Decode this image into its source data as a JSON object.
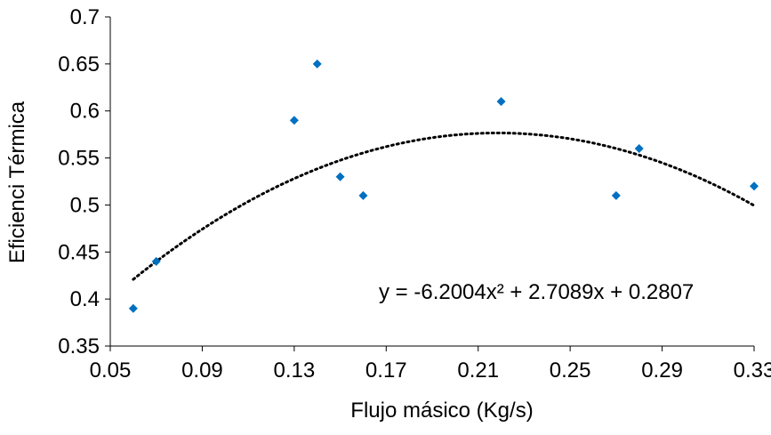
{
  "chart_data": {
    "type": "scatter",
    "xlabel": "Flujo másico (Kg/s)",
    "ylabel": "Eficienci Térmica",
    "xlim": [
      0.05,
      0.33
    ],
    "ylim": [
      0.35,
      0.7
    ],
    "x_ticks": [
      "0.05",
      "0.09",
      "0.13",
      "0.17",
      "0.21",
      "0.25",
      "0.29",
      "0.33"
    ],
    "y_ticks": [
      "0.35",
      "0.4",
      "0.45",
      "0.5",
      "0.55",
      "0.6",
      "0.65",
      "0.7"
    ],
    "grid": false,
    "legend": "none",
    "series": [
      {
        "x": [
          0.06,
          0.07,
          0.13,
          0.14,
          0.15,
          0.16,
          0.22,
          0.27,
          0.28,
          0.33
        ],
        "y": [
          0.39,
          0.44,
          0.59,
          0.65,
          0.53,
          0.51,
          0.61,
          0.51,
          0.56,
          0.52
        ],
        "marker": "diamond",
        "color": "#0070C0"
      }
    ],
    "trendline": {
      "type": "polynomial",
      "order": 2,
      "coefficients": [
        -6.2004,
        2.7089,
        0.2807
      ],
      "x_range": [
        0.06,
        0.33
      ],
      "style": "dotted",
      "color": "#000000",
      "equation_label": "y = -6.2004x² + 2.7089x + 0.2807"
    }
  }
}
